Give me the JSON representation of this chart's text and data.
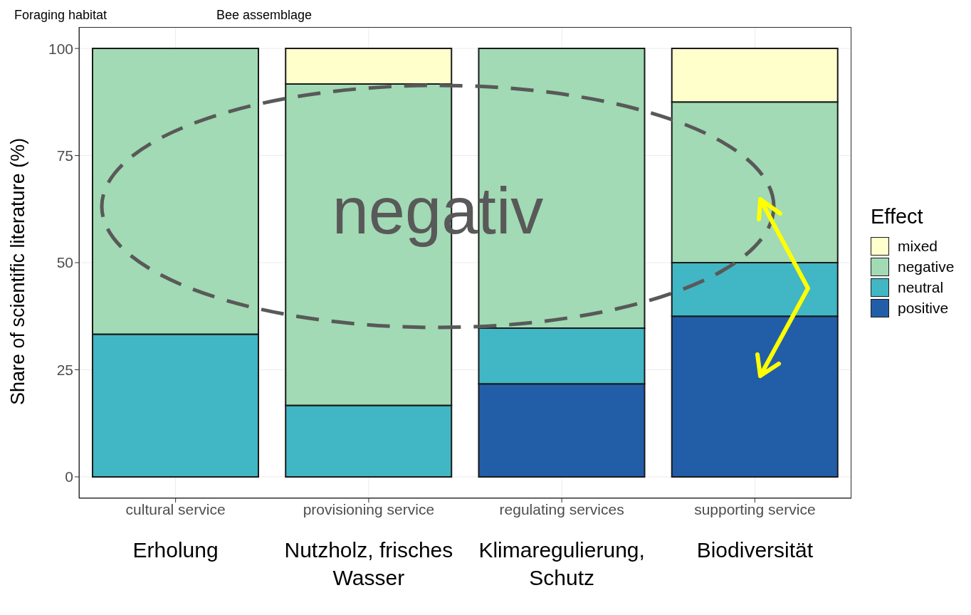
{
  "chart_data": {
    "type": "bar",
    "stacked": true,
    "categories": [
      "cultural service",
      "provisioning service",
      "regulating services",
      "supporting service"
    ],
    "series": [
      {
        "name": "positive",
        "color": "#225ea8",
        "values": [
          null,
          null,
          21.7,
          37.5
        ]
      },
      {
        "name": "neutral",
        "color": "#41b6c4",
        "values": [
          33.3,
          16.7,
          13,
          12.5
        ]
      },
      {
        "name": "negative",
        "color": "#a1dab4",
        "values": [
          66.7,
          75,
          65.3,
          37.5
        ]
      },
      {
        "name": "mixed",
        "color": "#ffffcc",
        "values": [
          null,
          8.3,
          null,
          12.5
        ]
      }
    ],
    "ylabel": "Share of scientific literature (%)",
    "legend_title": "Effect",
    "legend": "right",
    "ylim": [
      -5,
      105
    ],
    "yticks": [
      0,
      25,
      50,
      75,
      100
    ],
    "grid": true,
    "annotations": [
      "Foraging habitat",
      "Bee assemblage",
      "negativ",
      "Erholung",
      "Nutzholz, frisches Wasser",
      "Klimaregulierung, Schutz",
      "Biodiversität"
    ]
  }
}
